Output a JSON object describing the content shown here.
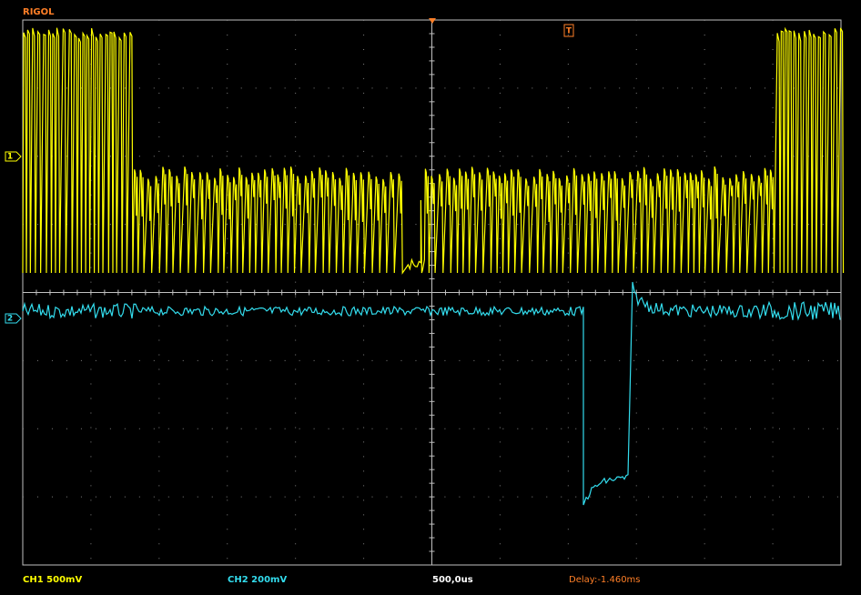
{
  "header": {
    "brand": "RIGOL",
    "trigger_marker": "T"
  },
  "channels": [
    {
      "marker": "1",
      "label": "CH1 500mV"
    },
    {
      "marker": "2",
      "label": "CH2 200mV"
    }
  ],
  "timebase": "500,0us",
  "delay": "Delay:-1.460ms"
}
